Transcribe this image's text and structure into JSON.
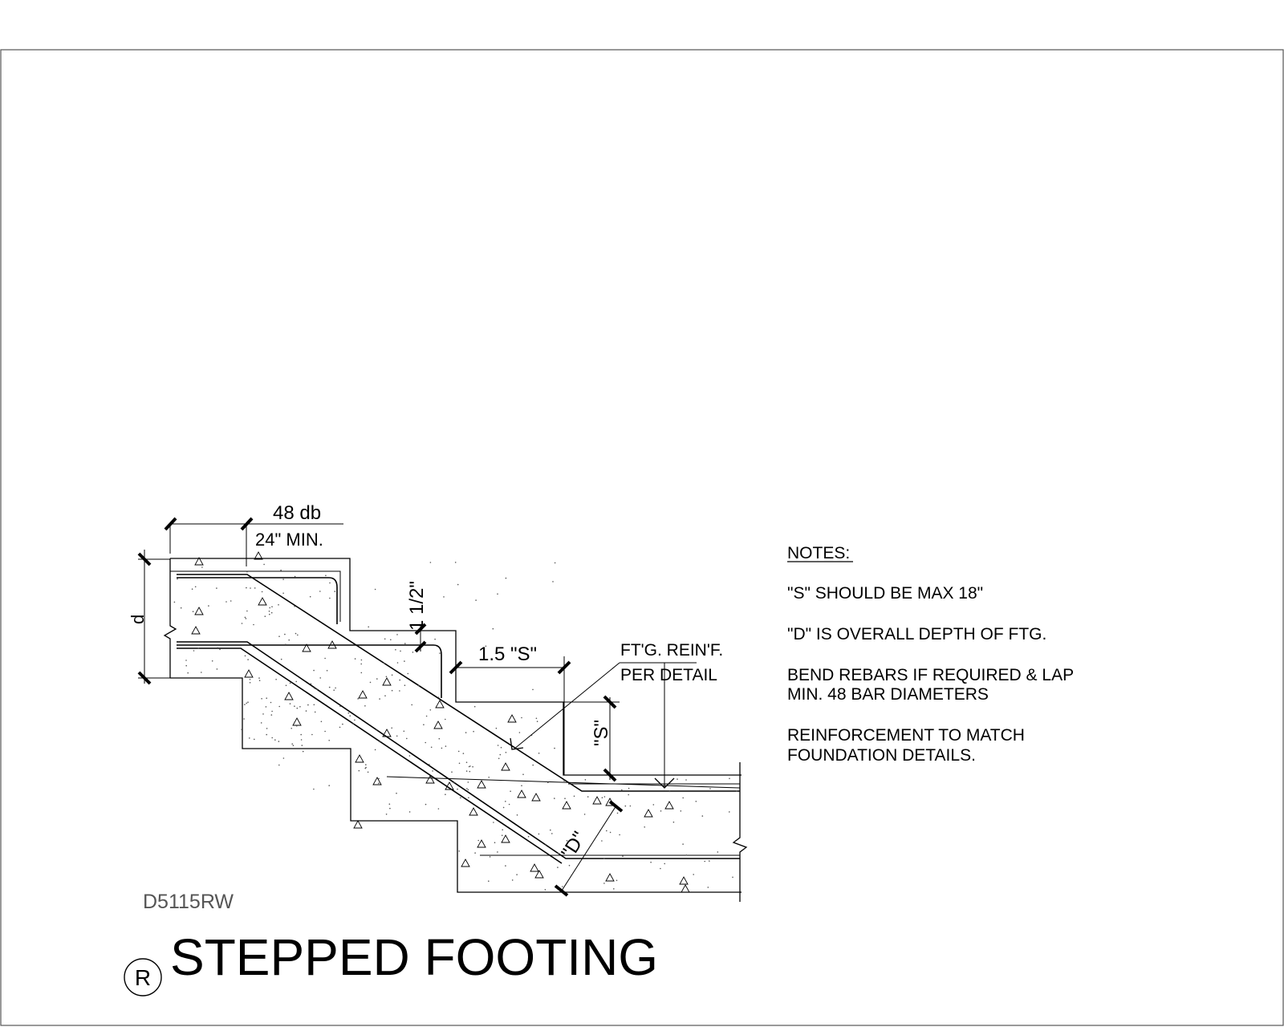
{
  "sheet": {
    "drawing_number": "D5115RW",
    "title": "STEPPED FOOTING",
    "callout_symbol": "R"
  },
  "dimensions": {
    "lap_top": "48 db",
    "lap_bottom": "24\" MIN.",
    "depth": "d",
    "cover": "1 1/2\"",
    "run": "1.5 \"S\"",
    "rise": "\"S\"",
    "overall_depth": "\"D\""
  },
  "callout": {
    "line1": "FT'G. REIN'F.",
    "line2": "PER DETAIL"
  },
  "notes": {
    "heading": "NOTES:",
    "items": [
      "\"S\" SHOULD BE MAX 18\"",
      "\"D\" IS OVERALL DEPTH OF FTG.",
      "BEND REBARS IF REQUIRED & LAP",
      "MIN. 48 BAR DIAMETERS",
      "REINFORCEMENT TO MATCH",
      "FOUNDATION DETAILS."
    ]
  }
}
